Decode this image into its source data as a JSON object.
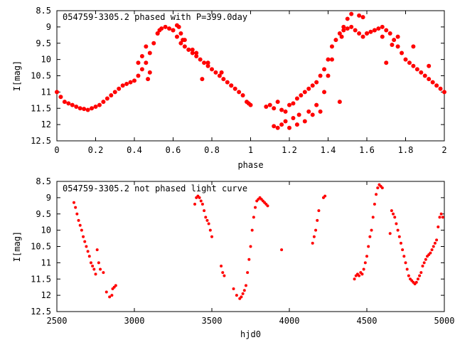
{
  "colors": {
    "points": "#ff0000",
    "axes": "#000000",
    "background": "#ffffff"
  },
  "chart_data": [
    {
      "type": "scatter",
      "title": "054759-3305.2 phased with P=399.0day",
      "xlabel": "phase",
      "ylabel": "I[mag]",
      "xlim": [
        0,
        2
      ],
      "ylim": [
        8.5,
        12.5
      ],
      "y_inverted": true,
      "grid": false,
      "xticks": [
        "0",
        "0.2",
        "0.4",
        "0.6",
        "0.8",
        "1",
        "1.2",
        "1.4",
        "1.6",
        "1.8",
        "2"
      ],
      "yticks": [
        "8.5",
        "9",
        "9.5",
        "10",
        "10.5",
        "11",
        "11.5",
        "12",
        "12.5"
      ],
      "series": [
        {
          "x": [
            0.0,
            0.02,
            0.04,
            0.06,
            0.08,
            0.1,
            0.12,
            0.14,
            0.16,
            0.18,
            0.2,
            0.22,
            0.24,
            0.26,
            0.28,
            0.3,
            0.32,
            0.34,
            0.36,
            0.38,
            0.4,
            0.42,
            0.44,
            0.46,
            0.48,
            0.5,
            0.52,
            0.54,
            0.56,
            0.58,
            0.6,
            0.62,
            0.64,
            0.66,
            0.68,
            0.7,
            0.72,
            0.74,
            0.76,
            0.78,
            0.8,
            0.82,
            0.84,
            0.86,
            0.88,
            0.9,
            0.92,
            0.94,
            0.96,
            0.98,
            0.99,
            1.0,
            1.08,
            1.1,
            1.12,
            1.14,
            1.16,
            1.18,
            1.2,
            1.22,
            1.24,
            1.26,
            1.28,
            1.3,
            1.32,
            1.34,
            1.36,
            1.38,
            1.4,
            1.42,
            1.44,
            1.46,
            1.48,
            1.5,
            1.52,
            1.54,
            1.56,
            1.58,
            1.6,
            1.62,
            1.64,
            1.66,
            1.68,
            1.7,
            1.72,
            1.74,
            1.76,
            1.78,
            1.8,
            1.82,
            1.84,
            1.86,
            1.88,
            1.9,
            1.92,
            1.94,
            1.96,
            1.98,
            2.0,
            0.62,
            0.63,
            0.64,
            0.47,
            0.48,
            0.52,
            0.53,
            0.66,
            0.68,
            0.72,
            0.75,
            1.14,
            1.16,
            1.18,
            1.22,
            1.25,
            1.3,
            1.34,
            1.38,
            1.4,
            1.42,
            1.47,
            1.48,
            1.5,
            1.52,
            1.56,
            1.58,
            1.68,
            1.73,
            0.42,
            0.44,
            0.46,
            0.6,
            0.65,
            0.7,
            0.78,
            0.85,
            0.9,
            1.12,
            1.2,
            1.24,
            1.28,
            1.32,
            1.36,
            1.46,
            1.6,
            1.64,
            1.7,
            1.76,
            1.84,
            1.92
          ],
          "y": [
            11.0,
            11.15,
            11.3,
            11.35,
            11.4,
            11.45,
            11.5,
            11.52,
            11.55,
            11.5,
            11.45,
            11.4,
            11.3,
            11.2,
            11.1,
            11.0,
            10.9,
            10.8,
            10.75,
            10.7,
            10.65,
            10.5,
            10.3,
            10.1,
            9.8,
            9.5,
            9.2,
            9.05,
            9.0,
            9.05,
            9.1,
            9.3,
            9.5,
            9.6,
            9.7,
            9.8,
            9.9,
            10.0,
            10.1,
            10.2,
            10.3,
            10.4,
            10.5,
            10.6,
            10.7,
            10.8,
            10.9,
            11.0,
            11.1,
            11.3,
            11.35,
            11.4,
            11.45,
            11.4,
            11.5,
            11.3,
            11.55,
            11.6,
            11.4,
            11.35,
            11.2,
            11.1,
            11.0,
            10.9,
            10.8,
            10.7,
            10.5,
            10.3,
            10.0,
            9.6,
            9.4,
            9.2,
            9.1,
            9.05,
            9.0,
            9.1,
            9.2,
            9.3,
            9.2,
            9.15,
            9.1,
            9.05,
            9.0,
            9.1,
            9.2,
            9.4,
            9.6,
            9.8,
            10.0,
            10.1,
            10.2,
            10.3,
            10.4,
            10.5,
            10.6,
            10.7,
            10.8,
            10.9,
            11.0,
            8.95,
            9.0,
            9.2,
            10.6,
            10.4,
            9.2,
            9.1,
            9.4,
            9.7,
            9.8,
            10.6,
            12.1,
            12.0,
            11.9,
            11.8,
            11.7,
            11.6,
            11.4,
            11.0,
            10.5,
            10.0,
            9.3,
            9.0,
            8.75,
            8.6,
            8.65,
            8.7,
            9.3,
            9.55,
            10.1,
            9.9,
            9.6,
            9.1,
            9.4,
            9.7,
            10.1,
            10.4,
            10.8,
            12.05,
            12.1,
            12.0,
            11.9,
            11.7,
            11.6,
            11.3,
            9.2,
            9.1,
            10.1,
            9.3,
            9.6,
            10.2
          ]
        }
      ]
    },
    {
      "type": "scatter",
      "title": "054759-3305.2 not phased light curve",
      "xlabel": "hjd0",
      "ylabel": "I[mag]",
      "xlim": [
        2500,
        5000
      ],
      "ylim": [
        8.5,
        12.5
      ],
      "y_inverted": true,
      "grid": false,
      "xticks": [
        "2500",
        "3000",
        "3500",
        "4000",
        "4500",
        "5000"
      ],
      "yticks": [
        "8.5",
        "9",
        "9.5",
        "10",
        "10.5",
        "11",
        "11.5",
        "12",
        "12.5"
      ],
      "series": [
        {
          "x": [
            2610,
            2620,
            2630,
            2640,
            2650,
            2660,
            2670,
            2680,
            2690,
            2700,
            2710,
            2720,
            2730,
            2740,
            2750,
            2760,
            2770,
            2780,
            2800,
            2820,
            2840,
            2860,
            2880,
            2870,
            2855,
            3390,
            3400,
            3410,
            3420,
            3430,
            3440,
            3450,
            3460,
            3470,
            3480,
            3490,
            3500,
            3560,
            3570,
            3580,
            3640,
            3660,
            3680,
            3690,
            3700,
            3710,
            3720,
            3730,
            3740,
            3750,
            3760,
            3770,
            3780,
            3790,
            3800,
            3810,
            3820,
            3830,
            3840,
            3850,
            3860,
            3950,
            4150,
            4160,
            4170,
            4180,
            4190,
            4220,
            4230,
            4420,
            4430,
            4440,
            4450,
            4460,
            4470,
            4480,
            4490,
            4500,
            4510,
            4520,
            4530,
            4540,
            4550,
            4560,
            4570,
            4580,
            4590,
            4600,
            4650,
            4660,
            4670,
            4680,
            4690,
            4700,
            4710,
            4720,
            4730,
            4740,
            4750,
            4760,
            4770,
            4780,
            4790,
            4800,
            4810,
            4820,
            4830,
            4840,
            4850,
            4860,
            4870,
            4880,
            4890,
            4900,
            4910,
            4920,
            4930,
            4940,
            4950,
            4960,
            4970,
            4980,
            4990
          ],
          "y": [
            9.15,
            9.3,
            9.5,
            9.7,
            9.85,
            10.0,
            10.2,
            10.35,
            10.5,
            10.65,
            10.8,
            11.0,
            11.1,
            11.2,
            11.35,
            10.6,
            11.0,
            11.2,
            11.3,
            11.9,
            12.05,
            11.8,
            11.7,
            11.75,
            12.0,
            9.2,
            9.0,
            8.95,
            9.0,
            9.1,
            9.2,
            9.4,
            9.6,
            9.7,
            9.8,
            10.0,
            10.2,
            11.1,
            11.3,
            11.4,
            11.8,
            12.0,
            12.1,
            12.05,
            11.95,
            11.85,
            11.7,
            11.3,
            10.9,
            10.5,
            10.0,
            9.6,
            9.3,
            9.1,
            9.05,
            9.0,
            9.05,
            9.1,
            9.15,
            9.2,
            9.25,
            10.6,
            10.4,
            10.2,
            10.0,
            9.7,
            9.4,
            9.0,
            8.95,
            11.5,
            11.4,
            11.35,
            11.4,
            11.3,
            11.35,
            11.2,
            11.0,
            10.8,
            10.5,
            10.2,
            10.0,
            9.6,
            9.2,
            8.9,
            8.7,
            8.6,
            8.65,
            8.7,
            10.1,
            9.4,
            9.5,
            9.6,
            9.8,
            10.0,
            10.2,
            10.4,
            10.6,
            10.8,
            11.0,
            11.2,
            11.4,
            11.5,
            11.55,
            11.6,
            11.65,
            11.6,
            11.5,
            11.4,
            11.3,
            11.1,
            11.0,
            10.9,
            10.8,
            10.75,
            10.7,
            10.6,
            10.5,
            10.4,
            10.3,
            9.9,
            9.6,
            9.5,
            9.6
          ]
        }
      ]
    }
  ]
}
